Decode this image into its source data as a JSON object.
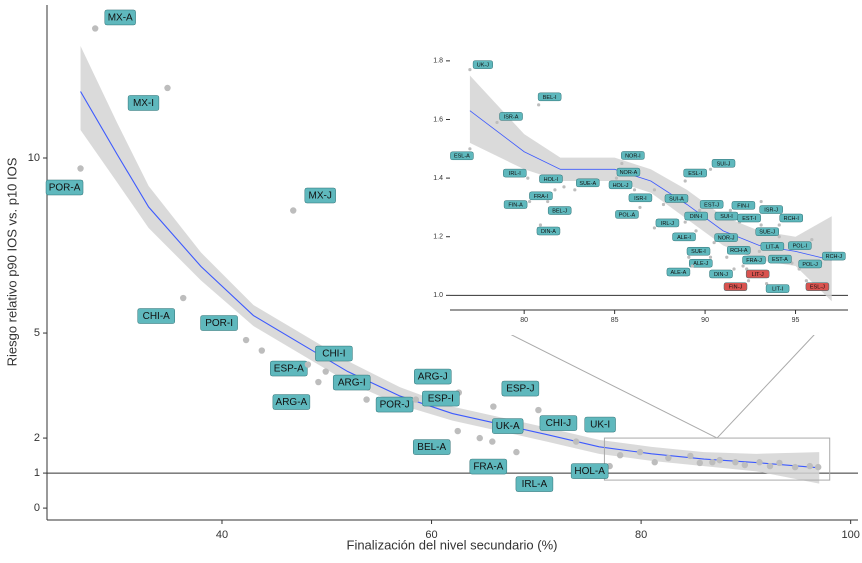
{
  "chart_data": [
    {
      "type": "scatter",
      "x_label": "Finalización del nivel secundario (%)",
      "y_label": "Riesgo relativo p90 IOS vs. p10 IOS",
      "xlim": [
        23.3,
        100.7
      ],
      "ylim": [
        -0.34,
        14.37
      ],
      "xticks": [
        40,
        60,
        80,
        100
      ],
      "yticks": [
        0,
        1,
        2,
        5,
        10
      ],
      "hline": 1,
      "point_color": "#bdbdbd",
      "label_color": "#5fb8bd",
      "fit_color": "#3d5afe",
      "band_color": "#d3d3d3",
      "points": {
        "labels": [
          "MX-A",
          "MX-I",
          "POR-A",
          "MX-J",
          "CHI-A",
          "POR-I",
          "ESP-A",
          "ARG-A",
          "CHI-I",
          "ARG-I",
          "POR-J",
          "ARG-J",
          "ESP-I",
          "BEL-A",
          "ESP-J",
          "UK-A",
          "CHI-J",
          "UK-I",
          "FRA-A",
          "IRL-A",
          "HOL-A"
        ],
        "x": [
          27.9,
          34.8,
          26.5,
          46.8,
          36.3,
          42.3,
          43.8,
          49.2,
          48.2,
          49.9,
          53.8,
          62.6,
          58.5,
          62.5,
          65.9,
          64.6,
          70.2,
          73.8,
          65.8,
          68.1,
          77.0
        ],
        "y": [
          13.7,
          12.0,
          9.7,
          8.5,
          6.0,
          4.8,
          4.5,
          3.6,
          4.1,
          3.9,
          3.1,
          3.3,
          3.1,
          2.2,
          2.9,
          2.0,
          2.8,
          1.9,
          1.9,
          1.6,
          1.2
        ]
      },
      "other_points": {
        "x": [
          78.0,
          79.9,
          81.3,
          82.6,
          84.7,
          85.6,
          86.8,
          87.5,
          89.0,
          89.9,
          91.3,
          92.3,
          93.2,
          94.7,
          96.1,
          96.9
        ],
        "y": [
          1.51,
          1.6,
          1.31,
          1.43,
          1.49,
          1.29,
          1.31,
          1.37,
          1.31,
          1.23,
          1.31,
          1.2,
          1.29,
          1.17,
          1.2,
          1.17
        ]
      },
      "fit": {
        "x": [
          26.5,
          30,
          33,
          38,
          43,
          47.5,
          52,
          57,
          62,
          66.5,
          71,
          76,
          81,
          86,
          91,
          97
        ],
        "y": [
          11.9,
          10.1,
          8.6,
          6.9,
          5.5,
          4.7,
          3.9,
          3.2,
          2.7,
          2.4,
          2.1,
          1.75,
          1.55,
          1.4,
          1.3,
          1.15
        ],
        "lower": [
          10.8,
          9.3,
          8.0,
          6.5,
          5.2,
          4.4,
          3.6,
          2.95,
          2.5,
          2.2,
          1.9,
          1.55,
          1.35,
          1.2,
          1.05,
          0.7
        ],
        "upper": [
          13.2,
          11.0,
          9.2,
          7.3,
          5.8,
          5.0,
          4.2,
          3.45,
          2.9,
          2.6,
          2.3,
          1.95,
          1.75,
          1.6,
          1.55,
          1.6
        ]
      },
      "zoom_box": {
        "x": [
          76.5,
          98
        ],
        "y": [
          0.8,
          2.0
        ]
      }
    },
    {
      "type": "scatter",
      "xlim": [
        75.9,
        97.9
      ],
      "ylim": [
        0.95,
        1.82
      ],
      "xticks": [
        80,
        85,
        90,
        95
      ],
      "yticks": [
        {
          "value": 1.0,
          "label": "1.0"
        },
        {
          "value": 1.2,
          "label": "1.2"
        },
        {
          "value": 1.4,
          "label": "1.4"
        },
        {
          "value": 1.6,
          "label": "1.6"
        },
        {
          "value": 1.8,
          "label": "1.8"
        }
      ],
      "hline": 1,
      "point_color": "#bdbdbd",
      "fit_color": "#3d5afe",
      "band_color": "#d3d3d3",
      "points": {
        "labels": [
          "UK-J",
          "BEL-I",
          "ISR-A",
          "ESL-A",
          "NOR-I",
          "SUI-J",
          "ESL-I",
          "IRL-I",
          "HOL-I",
          "NOR-A",
          "SUE-A",
          "HOL-J",
          "FRA-I",
          "BEL-J",
          "FIN-A",
          "ISR-I",
          "SUI-A",
          "EST-J",
          "FIN-I",
          "ISR-J",
          "DIN-I",
          "SUI-I",
          "EST-I",
          "RCH-I",
          "POL-A",
          "IRL-J",
          "DIN-A",
          "ALE-I",
          "NOR-J",
          "SUE-J",
          "LIT-A",
          "POL-I",
          "RCH-J",
          "SUE-I",
          "RCH-A",
          "ALE-J",
          "FRA-J",
          "EST-A",
          "ALE-A",
          "DIN-J",
          "LIT-J",
          "POL-J",
          "FIN-J",
          "LIT-I",
          "ESL-J"
        ],
        "x": [
          77.0,
          80.8,
          78.5,
          77.0,
          85.4,
          90.3,
          88.9,
          80.2,
          82.2,
          85.1,
          82.8,
          86.1,
          81.7,
          81.3,
          80.3,
          87.2,
          87.7,
          89.7,
          91.4,
          93.1,
          88.9,
          91.9,
          93.1,
          94.1,
          86.4,
          87.2,
          80.9,
          89.5,
          90.5,
          94.1,
          93.0,
          95.9,
          96.4,
          90.3,
          91.2,
          89.1,
          92.1,
          94.8,
          89.3,
          91.6,
          92.3,
          95.2,
          92.4,
          93.4,
          95.6
        ],
        "y": [
          1.77,
          1.65,
          1.59,
          1.5,
          1.45,
          1.43,
          1.39,
          1.4,
          1.37,
          1.4,
          1.36,
          1.36,
          1.36,
          1.32,
          1.32,
          1.36,
          1.31,
          1.29,
          1.29,
          1.32,
          1.25,
          1.25,
          1.24,
          1.24,
          1.3,
          1.23,
          1.24,
          1.22,
          1.18,
          1.2,
          1.15,
          1.19,
          1.11,
          1.13,
          1.13,
          1.13,
          1.1,
          1.11,
          1.1,
          1.09,
          1.09,
          1.09,
          1.05,
          1.04,
          1.05
        ],
        "label_colors": [
          "#5fb8bd",
          "#5fb8bd",
          "#5fb8bd",
          "#5fb8bd",
          "#5fb8bd",
          "#5fb8bd",
          "#5fb8bd",
          "#5fb8bd",
          "#5fb8bd",
          "#5fb8bd",
          "#5fb8bd",
          "#5fb8bd",
          "#5fb8bd",
          "#5fb8bd",
          "#5fb8bd",
          "#5fb8bd",
          "#5fb8bd",
          "#5fb8bd",
          "#5fb8bd",
          "#5fb8bd",
          "#5fb8bd",
          "#5fb8bd",
          "#5fb8bd",
          "#5fb8bd",
          "#5fb8bd",
          "#5fb8bd",
          "#5fb8bd",
          "#5fb8bd",
          "#5fb8bd",
          "#5fb8bd",
          "#5fb8bd",
          "#5fb8bd",
          "#5fb8bd",
          "#5fb8bd",
          "#5fb8bd",
          "#5fb8bd",
          "#5fb8bd",
          "#5fb8bd",
          "#5fb8bd",
          "#5fb8bd",
          "#d9534f",
          "#5fb8bd",
          "#d9534f",
          "#5fb8bd",
          "#d9534f"
        ]
      },
      "fit": {
        "x": [
          77,
          80,
          82,
          85,
          87,
          89,
          91,
          93,
          95,
          97
        ],
        "y": [
          1.63,
          1.49,
          1.43,
          1.43,
          1.39,
          1.31,
          1.22,
          1.17,
          1.15,
          1.12
        ],
        "lower": [
          1.52,
          1.43,
          1.39,
          1.39,
          1.35,
          1.26,
          1.17,
          1.12,
          1.1,
          0.98
        ],
        "upper": [
          1.75,
          1.55,
          1.47,
          1.47,
          1.43,
          1.36,
          1.27,
          1.22,
          1.2,
          1.27
        ]
      }
    }
  ]
}
